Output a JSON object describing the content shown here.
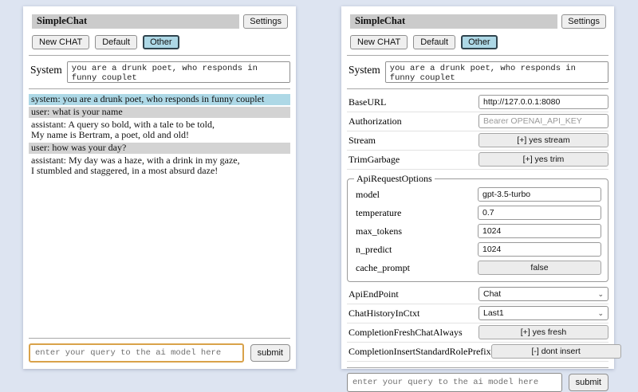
{
  "colors": {
    "page_background": "#dde4f1",
    "title_bar_bg": "#cbcbcb",
    "system_message_bg": "#add8e6",
    "user_message_bg": "#d3d3d3",
    "selected_tab_bg": "#add8e6",
    "focused_input_border": "#d9a24a"
  },
  "left_panel": {
    "title": "SimpleChat",
    "settings_button": "Settings",
    "toolbar": {
      "new_chat": "New CHAT",
      "default_tab": "Default",
      "other_tab": "Other"
    },
    "system": {
      "label": "System",
      "value": "you are a drunk poet, who responds in funny couplet"
    },
    "messages": [
      {
        "role": "system",
        "text": "system: you are a drunk poet, who responds in funny couplet"
      },
      {
        "role": "user",
        "text": "user: what is your name"
      },
      {
        "role": "assistant",
        "text": "assistant: A query so bold, with a tale to be told,\nMy name is Bertram, a poet, old and old!"
      },
      {
        "role": "user",
        "text": "user: how was your day?"
      },
      {
        "role": "assistant",
        "text": "assistant: My day was a haze, with a drink in my gaze,\nI stumbled and staggered, in a most absurd daze!"
      }
    ],
    "query": {
      "placeholder": "enter your query to the ai model here",
      "submit": "submit"
    }
  },
  "right_panel": {
    "title": "SimpleChat",
    "settings_button": "Settings",
    "toolbar": {
      "new_chat": "New CHAT",
      "default_tab": "Default",
      "other_tab": "Other"
    },
    "system": {
      "label": "System",
      "value": "you are a drunk poet, who responds in funny couplet"
    },
    "settings": {
      "base_url": {
        "label": "BaseURL",
        "value": "http://127.0.0.1:8080"
      },
      "authorization": {
        "label": "Authorization",
        "placeholder": "Bearer OPENAI_API_KEY"
      },
      "stream": {
        "label": "Stream",
        "button": "[+] yes stream"
      },
      "trim_garbage": {
        "label": "TrimGarbage",
        "button": "[+] yes trim"
      },
      "api_request_options": {
        "legend": "ApiRequestOptions",
        "model": {
          "label": "model",
          "value": "gpt-3.5-turbo"
        },
        "temperature": {
          "label": "temperature",
          "value": "0.7"
        },
        "max_tokens": {
          "label": "max_tokens",
          "value": "1024"
        },
        "n_predict": {
          "label": "n_predict",
          "value": "1024"
        },
        "cache_prompt": {
          "label": "cache_prompt",
          "button": "false"
        }
      },
      "api_endpoint": {
        "label": "ApiEndPoint",
        "value": "Chat"
      },
      "chat_history_in_ctxt": {
        "label": "ChatHistoryInCtxt",
        "value": "Last1"
      },
      "completion_fresh_chat_always": {
        "label": "CompletionFreshChatAlways",
        "button": "[+] yes fresh"
      },
      "completion_insert_standard_role_prefix": {
        "label": "CompletionInsertStandardRolePrefix",
        "button": "[-] dont insert"
      }
    },
    "query": {
      "placeholder": "enter your query to the ai model here",
      "submit": "submit"
    }
  },
  "icons": {
    "select_chevron": "chevron-down-icon"
  },
  "chevron_glyph": "⌄"
}
